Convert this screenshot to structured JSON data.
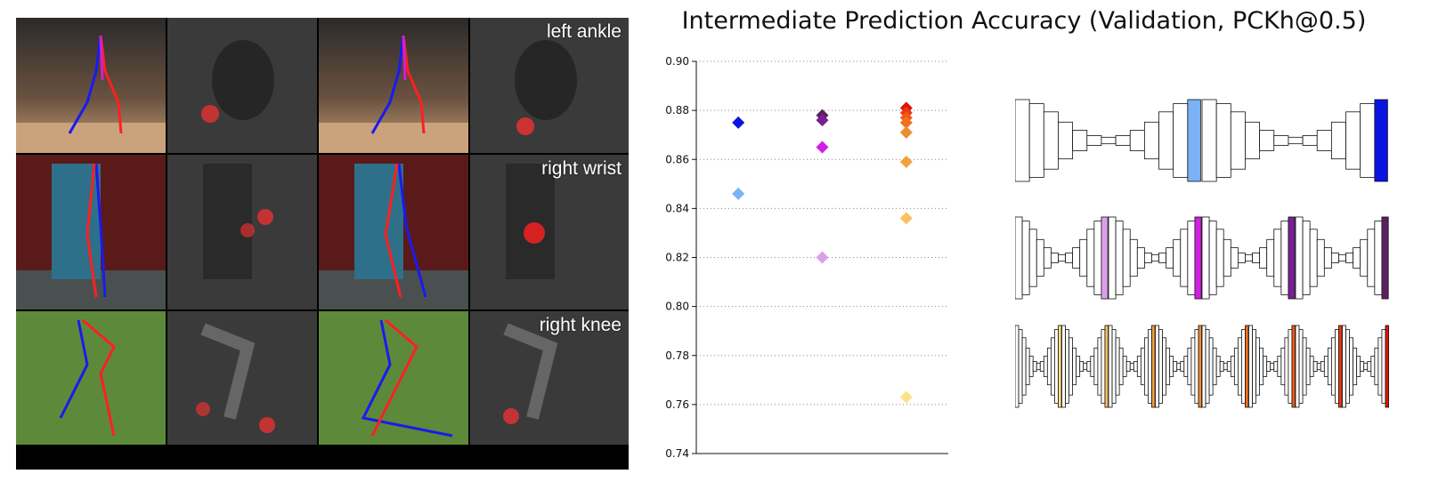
{
  "figure": {
    "row_labels": [
      "left ankle",
      "right wrist",
      "right knee"
    ]
  },
  "chart_data": {
    "type": "scatter",
    "title": "Intermediate Prediction Accuracy (Validation, PCKh@0.5)",
    "xlabel": "",
    "ylabel": "",
    "ylim": [
      0.74,
      0.9
    ],
    "yticks": [
      "0.90",
      "0.88",
      "0.86",
      "0.84",
      "0.82",
      "0.80",
      "0.78",
      "0.76",
      "0.74"
    ],
    "grid": "horizontal dotted",
    "groups": [
      {
        "x": 1,
        "points": [
          {
            "value": 0.875,
            "color": "#0a14e0"
          },
          {
            "value": 0.846,
            "color": "#7ab2f5"
          }
        ]
      },
      {
        "x": 2,
        "points": [
          {
            "value": 0.878,
            "color": "#5c2060"
          },
          {
            "value": 0.876,
            "color": "#7a1e96"
          },
          {
            "value": 0.865,
            "color": "#d21ee6"
          },
          {
            "value": 0.82,
            "color": "#dca0ea"
          }
        ]
      },
      {
        "x": 3,
        "points": [
          {
            "value": 0.881,
            "color": "#e0150a"
          },
          {
            "value": 0.879,
            "color": "#ec3a14"
          },
          {
            "value": 0.877,
            "color": "#f05a18"
          },
          {
            "value": 0.875,
            "color": "#f5701e"
          },
          {
            "value": 0.871,
            "color": "#f08a30"
          },
          {
            "value": 0.859,
            "color": "#f5a040"
          },
          {
            "value": 0.836,
            "color": "#fcc060"
          },
          {
            "value": 0.763,
            "color": "#fde08a"
          }
        ]
      }
    ],
    "architectures": [
      {
        "stacks": 2,
        "colors": [
          "#7ab2f5",
          "#0a14e0"
        ]
      },
      {
        "stacks": 4,
        "colors": [
          "#dca0ea",
          "#d21ee6",
          "#7a1e96",
          "#5c2060"
        ]
      },
      {
        "stacks": 8,
        "colors": [
          "#fde08a",
          "#fcc060",
          "#f5a040",
          "#f08a30",
          "#f5701e",
          "#f05a18",
          "#ec3a14",
          "#e0150a"
        ]
      }
    ]
  }
}
